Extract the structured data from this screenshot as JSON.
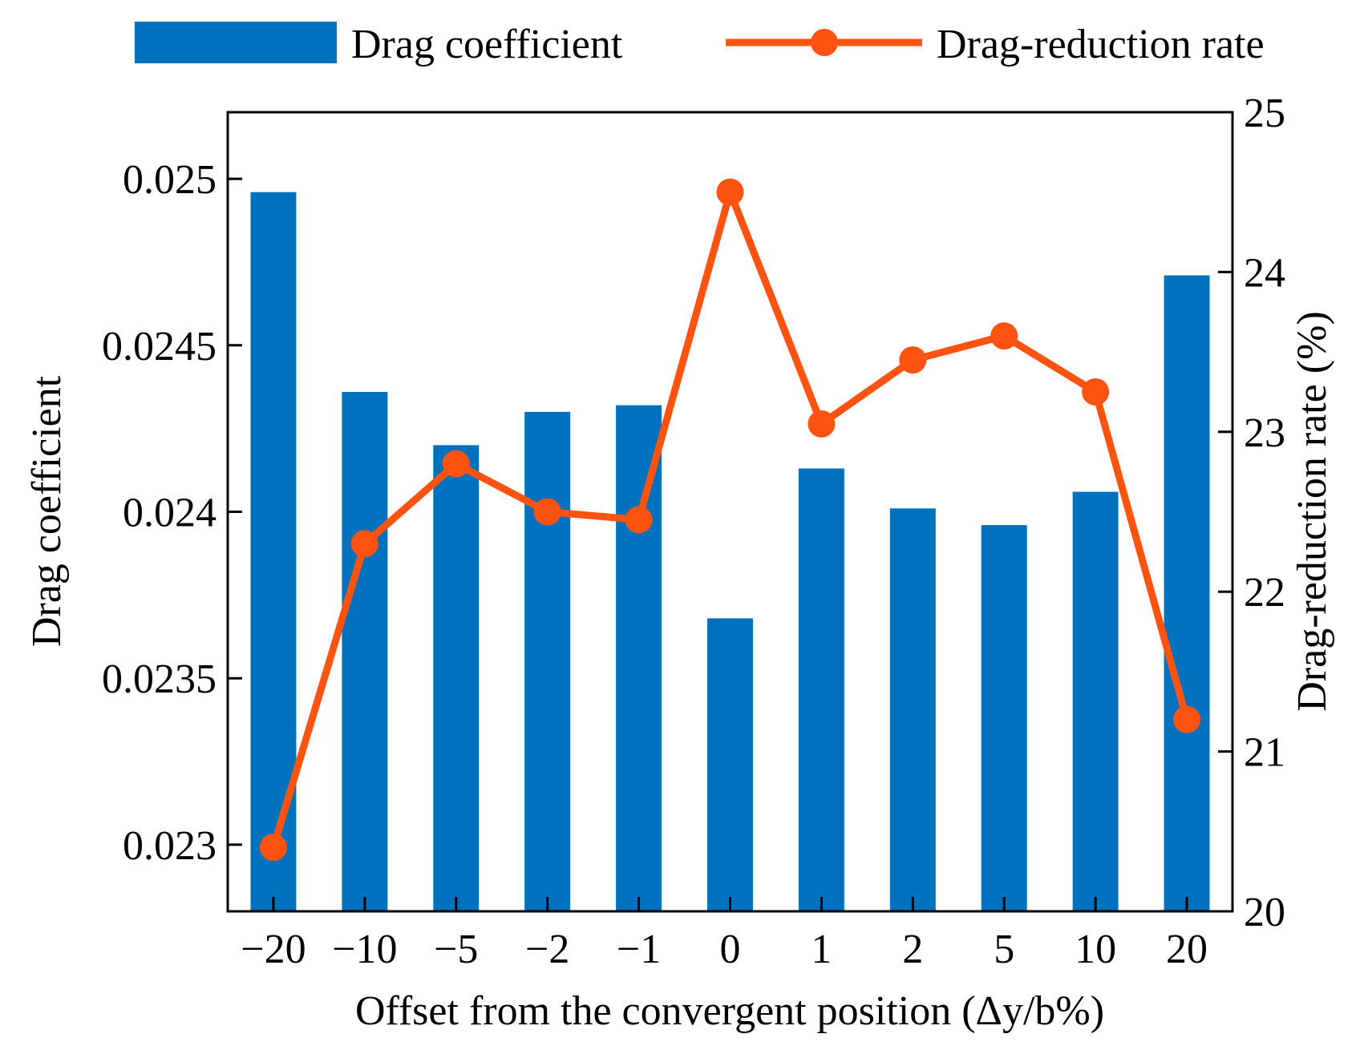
{
  "chart_data": {
    "type": "bar",
    "xlabel": "Offset from the convergent position (Δy/b%)",
    "ylabel": "Drag coefficient",
    "y2label": "Drag-reduction rate (%)",
    "categories": [
      "−20",
      "−10",
      "−5",
      "−2",
      "−1",
      "0",
      "1",
      "2",
      "5",
      "10",
      "20"
    ],
    "ylim": [
      0.0228,
      0.0252
    ],
    "y2lim": [
      20,
      25
    ],
    "yticks": [
      {
        "value": 0.023,
        "label": "0.023"
      },
      {
        "value": 0.0235,
        "label": "0.0235"
      },
      {
        "value": 0.024,
        "label": "0.024"
      },
      {
        "value": 0.0245,
        "label": "0.0245"
      },
      {
        "value": 0.025,
        "label": "0.025"
      }
    ],
    "y2ticks": [
      {
        "value": 20,
        "label": "20"
      },
      {
        "value": 21,
        "label": "21"
      },
      {
        "value": 22,
        "label": "22"
      },
      {
        "value": 23,
        "label": "23"
      },
      {
        "value": 24,
        "label": "24"
      },
      {
        "value": 25,
        "label": "25"
      }
    ],
    "series": [
      {
        "name": "Drag coefficient",
        "type": "bar",
        "axis": "left",
        "color": "#0072BD",
        "values": [
          0.02496,
          0.02436,
          0.0242,
          0.0243,
          0.02432,
          0.02368,
          0.02413,
          0.02401,
          0.02396,
          0.02406,
          0.02471
        ]
      },
      {
        "name": "Drag-reduction rate",
        "type": "line",
        "axis": "right",
        "color": "#FF5311",
        "values": [
          20.4,
          22.3,
          22.8,
          22.5,
          22.45,
          24.5,
          23.05,
          23.45,
          23.6,
          23.25,
          21.2
        ]
      }
    ],
    "legend": "top",
    "grid": false
  }
}
